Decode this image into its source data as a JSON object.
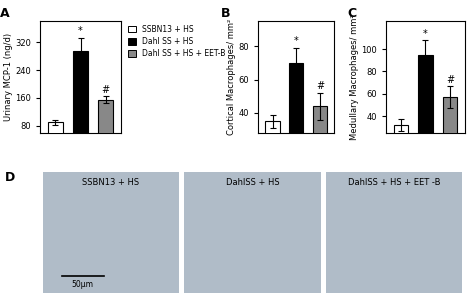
{
  "chart_data": [
    {
      "type": "bar",
      "title": "A",
      "ylabel": "Urinary MCP-1 (ng/d)",
      "categories": [
        "SSBN13 + HS",
        "Dahl SS + HS",
        "Dahl SS + HS + EET-B"
      ],
      "values": [
        90,
        295,
        155
      ],
      "errors": [
        8,
        38,
        10
      ],
      "colors": [
        "white",
        "black",
        "#888888"
      ],
      "annotations": [
        null,
        "*",
        "#"
      ],
      "ylim": [
        60,
        380
      ],
      "yticks": [
        80,
        160,
        240,
        320
      ],
      "tick_labels": "y",
      "legend": "upper left"
    },
    {
      "type": "bar",
      "title": "B",
      "ylabel": "Cortical Macrophages/ mm²",
      "categories": [
        null,
        null,
        null
      ],
      "values": [
        35,
        70,
        44
      ],
      "errors": [
        4,
        9,
        8
      ],
      "colors": [
        "white",
        "black",
        "#888888"
      ],
      "annotations": [
        null,
        "*",
        "#"
      ],
      "ylim": [
        28,
        95
      ],
      "yticks": [
        40,
        60,
        80
      ],
      "tick_labels": "y"
    },
    {
      "type": "bar",
      "title": "C",
      "ylabel": "Medullary Macrophages/ mm²",
      "categories": [
        null,
        null,
        null
      ],
      "values": [
        32,
        95,
        57
      ],
      "errors": [
        5,
        13,
        10
      ],
      "colors": [
        "white",
        "black",
        "#888888"
      ],
      "annotations": [
        null,
        "*",
        "#"
      ],
      "ylim": [
        25,
        125
      ],
      "yticks": [
        40,
        60,
        80,
        100
      ],
      "tick_labels": "y"
    },
    {
      "type": "image",
      "title": "D",
      "categories": [
        "SSBN13 + HS",
        "DahlSS + HS",
        "DahlSS + HS + EET -B"
      ],
      "annotations": [
        "50μm"
      ]
    }
  ]
}
